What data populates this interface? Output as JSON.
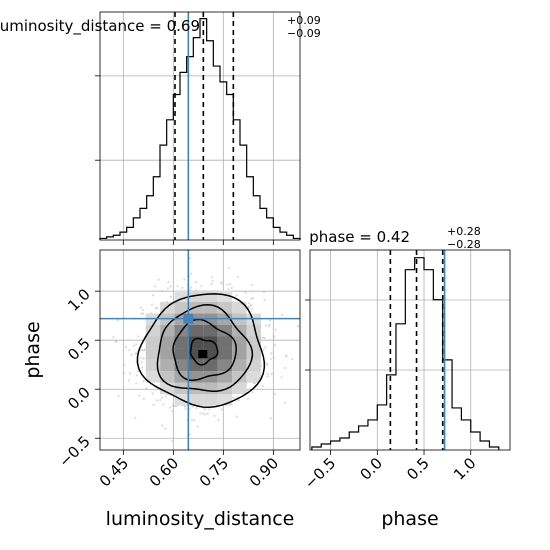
{
  "chart_data": {
    "type": "corner",
    "parameters": [
      "luminosity_distance",
      "phase"
    ],
    "truths": {
      "luminosity_distance": 0.645,
      "phase": 0.72
    },
    "colors": {
      "truth": "#4682b4",
      "hist": "#000000",
      "grid": "#b0b0b0"
    },
    "titles": {
      "luminosity_distance": {
        "name": "luminosity_distance",
        "median": "0.69",
        "plus": "+0.09",
        "minus": "−0.09"
      },
      "phase": {
        "name": "phase",
        "median": "0.42",
        "plus": "+0.28",
        "minus": "−0.28"
      }
    },
    "luminosity_distance_hist": {
      "xlim": [
        0.38,
        0.98
      ],
      "quantiles": [
        0.605,
        0.69,
        0.78
      ],
      "bin_edges": [
        0.38,
        0.4,
        0.42,
        0.44,
        0.46,
        0.48,
        0.5,
        0.52,
        0.54,
        0.56,
        0.58,
        0.6,
        0.62,
        0.64,
        0.66,
        0.68,
        0.7,
        0.72,
        0.74,
        0.76,
        0.78,
        0.8,
        0.82,
        0.84,
        0.86,
        0.88,
        0.9,
        0.92,
        0.94,
        0.96,
        0.98
      ],
      "counts": [
        0.5,
        1,
        1.5,
        2.5,
        4,
        7,
        10,
        14,
        20,
        30,
        38,
        46,
        53,
        58,
        64,
        70,
        63,
        55,
        50,
        46,
        38,
        30,
        20,
        14,
        10,
        7,
        4,
        2.5,
        1.5,
        0.5
      ],
      "xticks": [
        "0.45",
        "0.60",
        "0.75",
        "0.90"
      ],
      "xtick_values": [
        0.45,
        0.6,
        0.75,
        0.9
      ]
    },
    "phase_hist": {
      "xlim": [
        -0.72,
        1.42
      ],
      "quantiles": [
        0.14,
        0.42,
        0.7
      ],
      "bin_edges": [
        -0.7,
        -0.6,
        -0.5,
        -0.4,
        -0.3,
        -0.2,
        -0.1,
        0.0,
        0.1,
        0.2,
        0.3,
        0.4,
        0.5,
        0.6,
        0.7,
        0.8,
        0.9,
        1.0,
        1.1,
        1.2,
        1.3
      ],
      "counts": [
        1,
        2,
        3,
        4,
        6,
        8,
        10,
        15,
        25,
        42,
        60,
        64,
        60,
        50,
        30,
        14,
        10,
        6,
        3,
        1
      ],
      "xticks": [
        "−0.5",
        "0.0",
        "0.5",
        "1.0"
      ],
      "xtick_values": [
        -0.5,
        0.0,
        0.5,
        1.0
      ]
    },
    "joint": {
      "xlim": [
        0.38,
        0.98
      ],
      "ylim": [
        -0.62,
        1.42
      ],
      "center": [
        0.69,
        0.42
      ],
      "sigma": [
        0.09,
        0.28
      ],
      "yticks": [
        "−0.5",
        "0.0",
        "0.5",
        "1.0"
      ],
      "ytick_values": [
        -0.5,
        0.0,
        0.5,
        1.0
      ]
    },
    "xlabels": [
      "luminosity_distance",
      "phase"
    ],
    "ylabel": "phase"
  }
}
